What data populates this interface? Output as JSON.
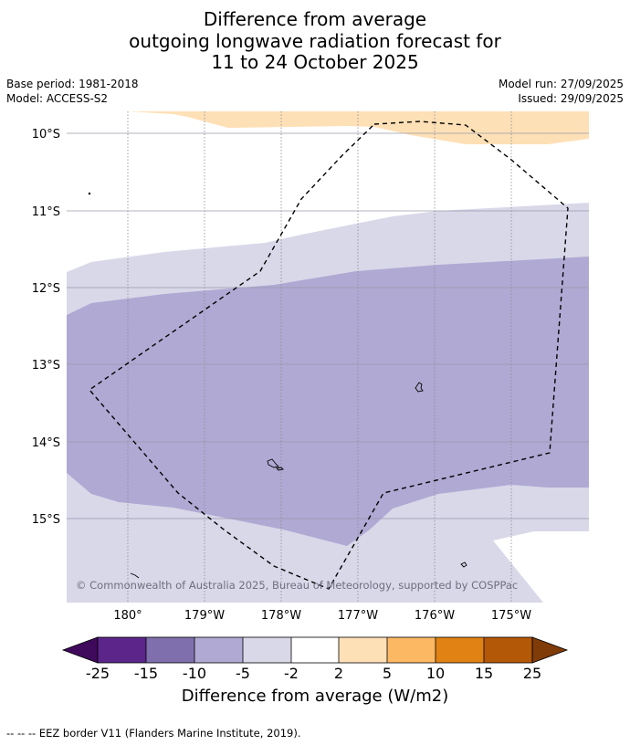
{
  "title": {
    "line1": "Difference from average",
    "line2": "outgoing longwave radiation forecast for",
    "line3": "11 to 24 October 2025"
  },
  "meta": {
    "base_period": "Base period: 1981-2018",
    "model": "Model: ACCESS-S2",
    "model_run": "Model run: 27/09/2025",
    "issued": "Issued: 29/09/2025"
  },
  "map": {
    "lat_labels": [
      "10°S",
      "11°S",
      "12°S",
      "13°S",
      "14°S",
      "15°S"
    ],
    "lon_labels": [
      "180°",
      "179°W",
      "178°W",
      "177°W",
      "176°W",
      "175°W"
    ],
    "copyright": "© Commonwealth of Australia 2025, Bureau of Meteorology, supported by COSPPac"
  },
  "colorbar": {
    "ticks": [
      "-25",
      "-15",
      "-10",
      "-5",
      "-2",
      "2",
      "5",
      "10",
      "15",
      "25"
    ],
    "colors": [
      "#3f0a5c",
      "#5b2589",
      "#7f6fad",
      "#b0a9d3",
      "#d8d8e9",
      "#ffffff",
      "#fee0b6",
      "#fdb863",
      "#e08214",
      "#b35806",
      "#7f3b08"
    ],
    "label": "Difference from average (W/m2)"
  },
  "footer": "--  --  -- EEZ border V11 (Flanders Marine Institute, 2019)."
}
